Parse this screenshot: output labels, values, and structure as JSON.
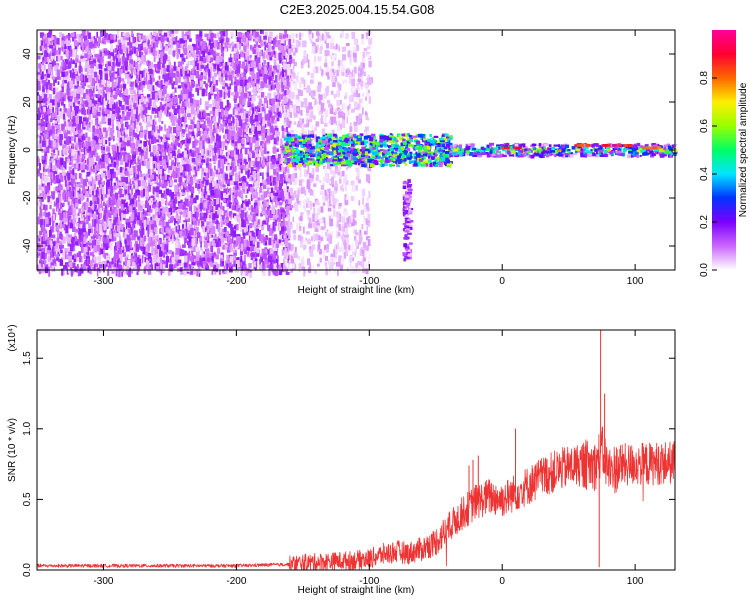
{
  "title": "C2E3.2025.004.15.54.G08",
  "chart_data": [
    {
      "type": "heatmap",
      "xlabel": "Height of straight line (km)",
      "ylabel": "Frequency (Hz)",
      "xlim": [
        -350,
        130
      ],
      "ylim": [
        -50,
        50
      ],
      "xticks": [
        -300,
        -200,
        -100,
        0,
        100
      ],
      "yticks": [
        -40,
        -20,
        0,
        20,
        40
      ],
      "colorbar": {
        "label": "Normalized spectral amplitude",
        "range": [
          0.0,
          1.0
        ],
        "ticks": [
          "0.0",
          "0.2",
          "0.4",
          "0.6",
          "0.8"
        ],
        "colors": [
          "#ffffff",
          "#cc66ff",
          "#7b00ff",
          "#0033ff",
          "#00e5ff",
          "#00ff66",
          "#99ff00",
          "#ffee00",
          "#ff6600",
          "#ff0033",
          "#ff0099"
        ]
      },
      "regions": [
        {
          "x": [
            -350,
            -160
          ],
          "freq": [
            -50,
            50
          ],
          "amplitude": 0.12
        },
        {
          "x": [
            -165,
            -100
          ],
          "freq": [
            -50,
            50
          ],
          "amplitude": 0.05
        },
        {
          "x": [
            -165,
            -40
          ],
          "freq": [
            -6,
            7
          ],
          "amplitude": 0.45
        },
        {
          "x": [
            -40,
            130
          ],
          "freq": [
            -2,
            3
          ],
          "amplitude": 0.55
        },
        {
          "x": [
            -70,
            -75
          ],
          "freq": [
            -45,
            -12
          ],
          "amplitude": 0.15
        }
      ],
      "peaks": [
        {
          "x": 5,
          "freq": 1,
          "amplitude": 0.9
        },
        {
          "x": 60,
          "freq": 2,
          "amplitude": 0.9
        },
        {
          "x": 80,
          "freq": 2,
          "amplitude": 0.95
        },
        {
          "x": 90,
          "freq": 2,
          "amplitude": 0.9
        },
        {
          "x": 110,
          "freq": 1,
          "amplitude": 0.85
        }
      ]
    },
    {
      "type": "line",
      "xlabel": "Height of straight line (km)",
      "ylabel": "SNR (10 * v/v)",
      "yscale_label": "(x10⁴)",
      "xlim": [
        -350,
        130
      ],
      "ylim": [
        0,
        1.7
      ],
      "xticks": [
        -300,
        -200,
        -100,
        0,
        100
      ],
      "yticks": [
        "0.0",
        "0.5",
        "1.0",
        "1.5"
      ],
      "color": "#ee3333",
      "series": [
        {
          "x": [
            -350,
            -300,
            -250,
            -200,
            -160,
            -150,
            -130,
            -110,
            -100,
            -90,
            -80,
            -70,
            -60,
            -50,
            -40,
            -30,
            -20,
            -10,
            0,
            10,
            20,
            30,
            40,
            50,
            60,
            70,
            75,
            80,
            90,
            100,
            110,
            120,
            130
          ],
          "values": [
            0.03,
            0.03,
            0.03,
            0.03,
            0.04,
            0.05,
            0.06,
            0.07,
            0.08,
            0.11,
            0.13,
            0.12,
            0.15,
            0.2,
            0.3,
            0.4,
            0.48,
            0.52,
            0.5,
            0.55,
            0.6,
            0.66,
            0.7,
            0.73,
            0.75,
            0.74,
            0.85,
            0.7,
            0.74,
            0.75,
            0.75,
            0.76,
            0.76
          ]
        }
      ],
      "spikes": [
        {
          "x": -36,
          "y": 0.42
        },
        {
          "x": -34,
          "y": 0.41
        },
        {
          "x": -25,
          "y": 0.74
        },
        {
          "x": -22,
          "y": 0.78
        },
        {
          "x": -18,
          "y": 0.81
        },
        {
          "x": -10,
          "y": 0.56
        },
        {
          "x": 10,
          "y": 1.0
        },
        {
          "x": 74,
          "y": 1.7
        },
        {
          "x": 77,
          "y": 1.25
        },
        {
          "x": 73,
          "y": 0.02
        }
      ]
    }
  ]
}
